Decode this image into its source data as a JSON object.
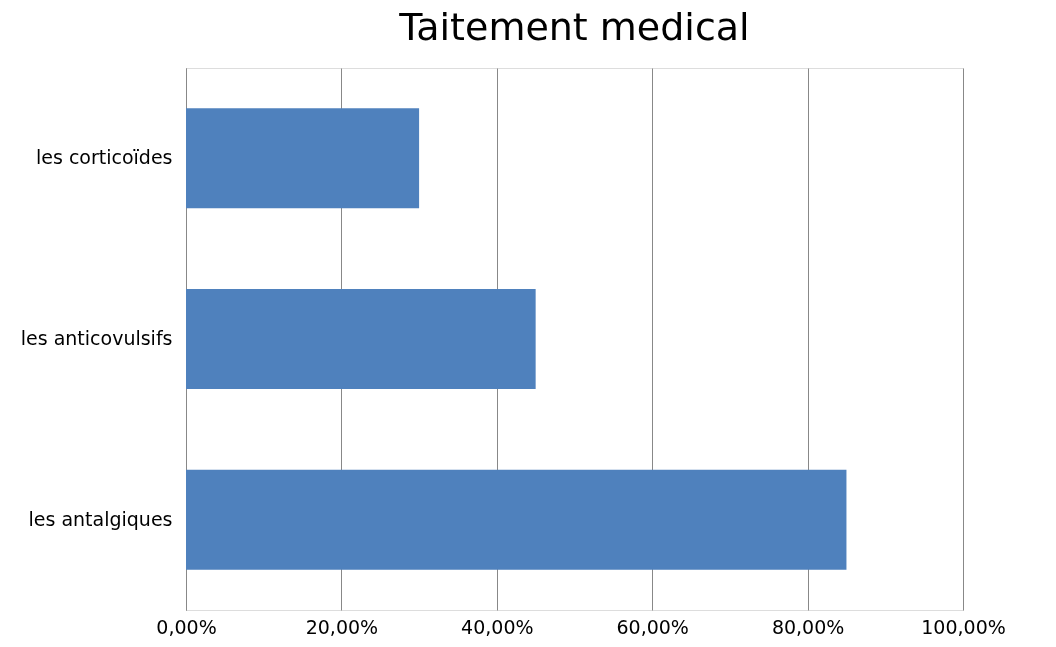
{
  "chart_data": {
    "type": "bar",
    "orientation": "horizontal",
    "title": "Taitement medical",
    "categories": [
      "les corticoïdes",
      "les anticovulsifs",
      "les antalgiques"
    ],
    "values": [
      30,
      45,
      85
    ],
    "color": "#4f81bd",
    "xlim": [
      0,
      100
    ],
    "xticks": [
      {
        "value": 0,
        "label": "0,00%"
      },
      {
        "value": 20,
        "label": "20,00%"
      },
      {
        "value": 40,
        "label": "40,00%"
      },
      {
        "value": 60,
        "label": "60,00%"
      },
      {
        "value": 80,
        "label": "80,00%"
      },
      {
        "value": 100,
        "label": "100,00%"
      }
    ],
    "grid": "x"
  }
}
